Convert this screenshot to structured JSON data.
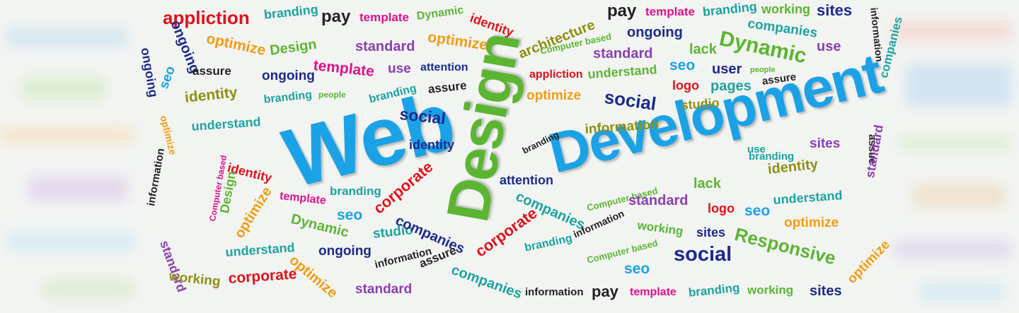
{
  "image": {
    "description_colors": {
      "blue": "#1ba2e6",
      "green": "#5cb531",
      "navy": "#1c2a8c",
      "orange": "#f39c12",
      "red": "#e3101a",
      "magenta": "#e0108c",
      "purple": "#8b3fb0",
      "olive": "#8f8f12",
      "teal": "#1aa3a0",
      "dark": "#222222"
    },
    "headline": {
      "word1": "Web",
      "word2": "Design",
      "word3": "Development"
    },
    "words": [
      "appliction",
      "branding",
      "pay",
      "template",
      "Dynamic",
      "identity",
      "architecture",
      "pay",
      "template",
      "branding",
      "working",
      "sites",
      "ongoing",
      "optimize",
      "Design",
      "standard",
      "optimize",
      "Computer based",
      "ongoing",
      "companies",
      "information",
      "ongoing",
      "assure",
      "template",
      "use",
      "attention",
      "appliction",
      "standard",
      "lack",
      "Dynamic",
      "use",
      "seo",
      "identity",
      "ongoing",
      "branding",
      "people",
      "branding",
      "assure",
      "optimize",
      "understand",
      "seo",
      "user",
      "people",
      "optimize",
      "understand",
      "social",
      "logo",
      "pages",
      "assure",
      "social",
      "studio",
      "companies",
      "branding",
      "information",
      "identity",
      "sites",
      "use",
      "assue",
      "information",
      "Computer based",
      "identity",
      "template",
      "branding",
      "corporate",
      "attention",
      "branding",
      "standard",
      "Design",
      "optimize",
      "seo",
      "Dynamic",
      "companies",
      "Computer based",
      "lack",
      "identity",
      "studio",
      "understand",
      "companies",
      "corporate",
      "standard",
      "logo",
      "seo",
      "understand",
      "standard",
      "ongoing",
      "information",
      "branding",
      "working",
      "sites",
      "Responsive",
      "optimize",
      "working",
      "corporate",
      "optimize",
      "information",
      "assure",
      "companies",
      "Computer based",
      "social",
      "seo",
      "standard",
      "information",
      "pay",
      "template",
      "branding",
      "working",
      "sites",
      "optimize"
    ]
  }
}
